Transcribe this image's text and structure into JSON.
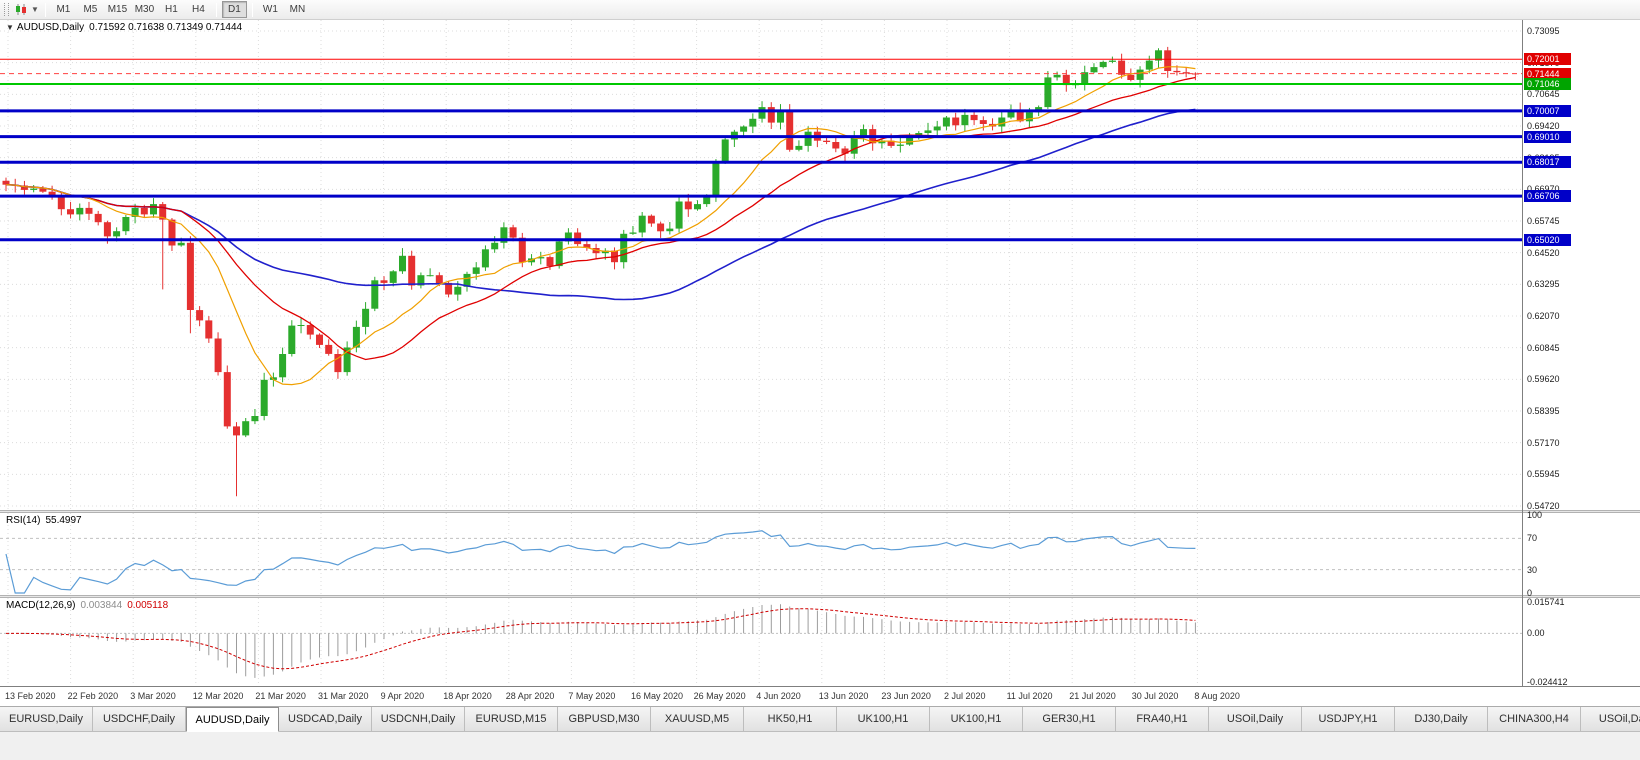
{
  "toolbar": {
    "grip_icon": "toolbar-grip",
    "chart_type_icon": "candlestick-chart",
    "chart_type_caret_icon": "caret-down",
    "timeframes": [
      "M1",
      "M5",
      "M15",
      "M30",
      "H1",
      "H4",
      "D1",
      "W1",
      "MN"
    ],
    "active_timeframe": "D1"
  },
  "chart": {
    "title": "AUDUSD,Daily",
    "ohlc_text": "0.71592 0.71638 0.71349 0.71444"
  },
  "price_axis": {
    "labels": [
      "0.73095",
      "0.71870",
      "0.70645",
      "0.69420",
      "0.68195",
      "0.66970",
      "0.65745",
      "0.64520",
      "0.63295",
      "0.62070",
      "0.60845",
      "0.59620",
      "0.58395",
      "0.57170",
      "0.55945",
      "0.54720"
    ]
  },
  "hlines": [
    {
      "price": 0.72001,
      "label": "0.72001",
      "color": "#FF0000",
      "thickness": 1,
      "style": "solid",
      "box": "#E00000"
    },
    {
      "price": 0.71444,
      "label": "0.71444",
      "color": "#FF4040",
      "thickness": 1,
      "style": "dashed",
      "box": "#E00000"
    },
    {
      "price": 0.71046,
      "label": "0.71046",
      "color": "#00C800",
      "thickness": 2,
      "style": "solid",
      "box": "#00A400"
    },
    {
      "price": 0.70007,
      "label": "0.70007",
      "color": "#0000C8",
      "thickness": 3,
      "style": "solid",
      "box": "#0000C8"
    },
    {
      "price": 0.6901,
      "label": "0.69010",
      "color": "#0000C8",
      "thickness": 3,
      "style": "solid",
      "box": "#0000C8"
    },
    {
      "price": 0.68017,
      "label": "0.68017",
      "color": "#0000C8",
      "thickness": 3,
      "style": "solid",
      "box": "#0000C8"
    },
    {
      "price": 0.66706,
      "label": "0.66706",
      "color": "#0000C8",
      "thickness": 3,
      "style": "solid",
      "box": "#0000C8"
    },
    {
      "price": 0.6502,
      "label": "0.65020",
      "color": "#0000C8",
      "thickness": 3,
      "style": "solid",
      "box": "#0000C8"
    }
  ],
  "rsi": {
    "name": "RSI(14)",
    "value": "55.4997",
    "axis_labels": [
      "100",
      "70",
      "30",
      "0"
    ],
    "levels": [
      70,
      30
    ]
  },
  "macd": {
    "name": "MACD(12,26,9)",
    "main_value": "0.003844",
    "signal_value": "0.005118",
    "axis_labels": [
      "0.015741",
      "0.00",
      "-0.024412"
    ]
  },
  "x_axis": {
    "labels": [
      "13 Feb 2020",
      "22 Feb 2020",
      "3 Mar 2020",
      "12 Mar 2020",
      "21 Mar 2020",
      "31 Mar 2020",
      "9 Apr 2020",
      "18 Apr 2020",
      "28 Apr 2020",
      "7 May 2020",
      "16 May 2020",
      "26 May 2020",
      "4 Jun 2020",
      "13 Jun 2020",
      "23 Jun 2020",
      "2 Jul 2020",
      "11 Jul 2020",
      "21 Jul 2020",
      "30 Jul 2020",
      "8 Aug 2020"
    ]
  },
  "bottom_tabs": {
    "items": [
      "EURUSD,Daily",
      "USDCHF,Daily",
      "AUDUSD,Daily",
      "USDCAD,Daily",
      "USDCNH,Daily",
      "EURUSD,M15",
      "GBPUSD,M30",
      "XAUUSD,M5",
      "HK50,H1",
      "UK100,H1",
      "UK100,H1",
      "GER30,H1",
      "FRA40,H1",
      "USOil,Daily",
      "USDJPY,H1",
      "DJ30,Daily",
      "CHINA300,H4",
      "USOil,Daily"
    ],
    "active_index": 2
  },
  "colors": {
    "bull": "#2BAA2B",
    "bear": "#E53030",
    "ma_fast": "#F0A000",
    "ma_mid": "#E00000",
    "ma_slow": "#2020CC",
    "rsi_line": "#5B9CD6",
    "macd_hist": "#9C9C9C",
    "macd_signal": "#D00000",
    "grid": "#DCDCDC",
    "level_dash": "#C0C0C0"
  },
  "chart_data": {
    "type": "candlestick",
    "symbol": "AUDUSD",
    "timeframe": "Daily",
    "ohlc_current": {
      "open": 0.71592,
      "high": 0.71638,
      "low": 0.71349,
      "close": 0.71444
    },
    "price_range_visible": [
      0.5472,
      0.73095
    ],
    "first_open": 0.673,
    "closes": [
      0.6715,
      0.6712,
      0.6695,
      0.67,
      0.6688,
      0.667,
      0.662,
      0.66,
      0.6625,
      0.6602,
      0.657,
      0.6515,
      0.6535,
      0.659,
      0.6625,
      0.66,
      0.664,
      0.658,
      0.648,
      0.649,
      0.623,
      0.619,
      0.612,
      0.599,
      0.578,
      0.5745,
      0.58,
      0.582,
      0.596,
      0.597,
      0.606,
      0.617,
      0.6172,
      0.6135,
      0.6095,
      0.606,
      0.599,
      0.6085,
      0.6165,
      0.6235,
      0.6345,
      0.6335,
      0.638,
      0.644,
      0.6325,
      0.6365,
      0.6365,
      0.6335,
      0.629,
      0.632,
      0.637,
      0.6395,
      0.6465,
      0.649,
      0.655,
      0.651,
      0.6415,
      0.643,
      0.6435,
      0.64,
      0.6495,
      0.653,
      0.6485,
      0.647,
      0.645,
      0.646,
      0.6415,
      0.6525,
      0.653,
      0.6595,
      0.6565,
      0.6535,
      0.6545,
      0.665,
      0.662,
      0.664,
      0.667,
      0.68,
      0.689,
      0.692,
      0.694,
      0.697,
      0.7015,
      0.6955,
      0.7,
      0.685,
      0.6865,
      0.692,
      0.6885,
      0.688,
      0.6855,
      0.6835,
      0.6905,
      0.693,
      0.6875,
      0.6885,
      0.6865,
      0.687,
      0.6905,
      0.6915,
      0.6925,
      0.694,
      0.6975,
      0.6945,
      0.6985,
      0.6965,
      0.695,
      0.694,
      0.6975,
      0.7005,
      0.696,
      0.6995,
      0.7015,
      0.713,
      0.714,
      0.71,
      0.7105,
      0.715,
      0.717,
      0.719,
      0.7195,
      0.714,
      0.712,
      0.716,
      0.7195,
      0.7235,
      0.7155,
      0.715,
      0.7145,
      0.71444
    ],
    "wick_low_overrides": {
      "17": 0.631,
      "20": 0.614,
      "25": 0.551
    },
    "wick_high_overrides": {
      "82": 0.7038,
      "125": 0.7243
    },
    "ma_periods": {
      "fast": 10,
      "mid": 20,
      "slow": 50
    },
    "indicators": {
      "rsi_period": 14,
      "macd_params": [
        12,
        26,
        9
      ]
    },
    "macd_scale": {
      "max": 0.015741,
      "min": -0.024412
    }
  }
}
